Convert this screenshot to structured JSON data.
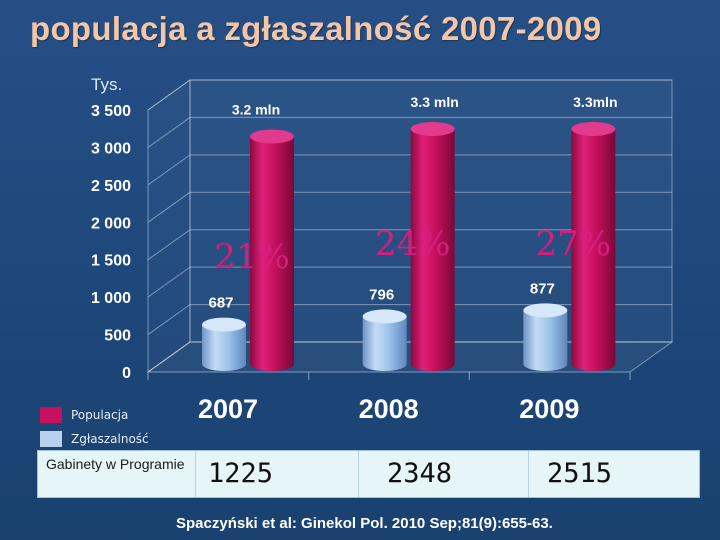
{
  "slide": {
    "title": "populacja a zgłaszalność 2007-2009",
    "source": "Spaczyński et al: Ginekol Pol. 2010 Sep;81(9):655-63."
  },
  "chart_data": {
    "type": "bar",
    "title": "populacja a zgłaszalność 2007-2009",
    "ylabel": "Tys.",
    "xlabel": "",
    "ylim": [
      0,
      3500
    ],
    "yticks": [
      0,
      500,
      1000,
      1500,
      2000,
      2500,
      3000,
      3500
    ],
    "ytick_labels": [
      "0",
      "500",
      "1 000",
      "1 500",
      "2 000",
      "2 500",
      "3 000",
      "3 500"
    ],
    "categories": [
      "2007",
      "2008",
      "2009"
    ],
    "grid": true,
    "series": [
      {
        "name": "Populacja",
        "color": "#c8105e",
        "values": [
          3200,
          3300,
          3300
        ],
        "labels": [
          "3.2 mln",
          "3.3 mln",
          "3.3mln"
        ]
      },
      {
        "name": "Zgłaszalność",
        "color": "#9cc3ea",
        "values": [
          687,
          796,
          877
        ],
        "labels": [
          "687",
          "796",
          "877"
        ]
      }
    ],
    "annotations": [
      "21%",
      "24%",
      "27%"
    ],
    "legend_position": "bottom-left"
  },
  "table": {
    "row_label": "Gabinety w Programie",
    "values": [
      "1225",
      "2348",
      "2515"
    ]
  }
}
